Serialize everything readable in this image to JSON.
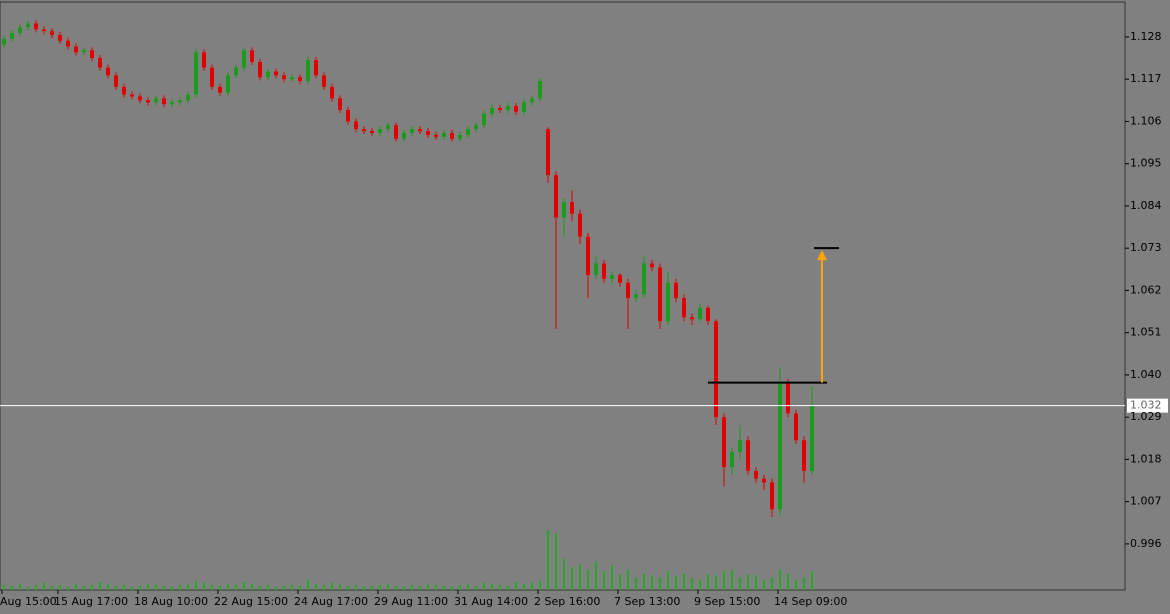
{
  "chart_data": {
    "type": "candlestick",
    "background": "#808080",
    "up_color": "#1a9c1a",
    "down_color": "#e00000",
    "volume_color": "#27a827",
    "categories": [
      "Aug 15:00",
      null,
      null,
      null,
      null,
      null,
      null,
      "15 Aug 17:00",
      null,
      null,
      null,
      null,
      null,
      null,
      null,
      null,
      null,
      "18 Aug 10:00",
      null,
      null,
      null,
      null,
      null,
      null,
      null,
      null,
      null,
      "22 Aug 15:00",
      null,
      null,
      null,
      null,
      null,
      null,
      null,
      null,
      null,
      "24 Aug 17:00",
      null,
      null,
      null,
      null,
      null,
      null,
      null,
      null,
      null,
      "29 Aug 11:00",
      null,
      null,
      null,
      null,
      null,
      null,
      null,
      null,
      null,
      "31 Aug 14:00",
      null,
      null,
      null,
      null,
      null,
      null,
      null,
      null,
      null,
      "2 Sep 16:00",
      null,
      null,
      null,
      null,
      null,
      null,
      null,
      null,
      null,
      "7 Sep 13:00",
      null,
      null,
      null,
      null,
      null,
      null,
      null,
      null,
      null,
      "9 Sep 15:00",
      null,
      null,
      null,
      null,
      null,
      null,
      null,
      null,
      null,
      "14 Sep 09:00",
      null,
      null,
      null,
      null
    ],
    "open": [
      1.126,
      1.1275,
      1.129,
      1.1305,
      1.1315,
      1.13,
      1.1295,
      1.1285,
      1.127,
      1.1255,
      1.124,
      1.1245,
      1.1225,
      1.12,
      1.118,
      1.115,
      1.113,
      1.1125,
      1.1115,
      1.111,
      1.112,
      1.1105,
      1.111,
      1.1115,
      1.113,
      1.124,
      1.12,
      1.115,
      1.1135,
      1.118,
      1.12,
      1.1245,
      1.1215,
      1.1175,
      1.119,
      1.118,
      1.117,
      1.1175,
      1.1165,
      1.122,
      1.118,
      1.115,
      1.112,
      1.109,
      1.106,
      1.104,
      1.1035,
      1.103,
      1.104,
      1.105,
      1.1015,
      1.103,
      1.104,
      1.1035,
      1.1025,
      1.102,
      1.103,
      1.1015,
      1.1025,
      1.104,
      1.105,
      1.108,
      1.1095,
      1.109,
      1.11,
      1.1085,
      1.111,
      1.112,
      1.104,
      1.092,
      1.081,
      1.085,
      1.082,
      1.076,
      1.066,
      1.069,
      1.065,
      1.066,
      1.064,
      1.06,
      1.061,
      1.069,
      1.068,
      1.054,
      1.064,
      1.06,
      1.055,
      1.0545,
      1.0575,
      1.054,
      1.029,
      1.016,
      1.02,
      1.023,
      1.015,
      1.013,
      1.012,
      1.005,
      1.038,
      1.03,
      1.023,
      1.015
    ],
    "high": [
      1.1283,
      1.1298,
      1.1313,
      1.1323,
      1.1323,
      1.1308,
      1.1303,
      1.1293,
      1.1278,
      1.1263,
      1.1253,
      1.1253,
      1.1233,
      1.1208,
      1.1188,
      1.1158,
      1.1138,
      1.1133,
      1.1123,
      1.1128,
      1.1128,
      1.1118,
      1.1123,
      1.1138,
      1.1248,
      1.1248,
      1.1208,
      1.1158,
      1.1188,
      1.1208,
      1.1253,
      1.1253,
      1.1223,
      1.1198,
      1.1198,
      1.1188,
      1.1183,
      1.1183,
      1.1228,
      1.1228,
      1.1188,
      1.1158,
      1.1128,
      1.1098,
      1.1068,
      1.1048,
      1.1043,
      1.1048,
      1.1058,
      1.1058,
      1.1038,
      1.1048,
      1.1048,
      1.1043,
      1.1033,
      1.1038,
      1.1038,
      1.1033,
      1.1048,
      1.1058,
      1.1088,
      1.1103,
      1.1103,
      1.1108,
      1.1108,
      1.1118,
      1.1128,
      1.1173,
      1.1045,
      1.093,
      1.086,
      1.088,
      1.083,
      1.077,
      1.071,
      1.07,
      1.067,
      1.0665,
      1.065,
      1.062,
      1.071,
      1.07,
      1.069,
      1.067,
      1.065,
      1.061,
      1.056,
      1.0585,
      1.058,
      1.0545,
      1.03,
      1.021,
      1.027,
      1.024,
      1.016,
      1.014,
      1.013,
      1.042,
      1.039,
      1.031,
      1.024,
      1.037
    ],
    "low": [
      1.1252,
      1.1267,
      1.1282,
      1.1297,
      1.1292,
      1.1287,
      1.1277,
      1.1262,
      1.1247,
      1.1232,
      1.1232,
      1.1217,
      1.1192,
      1.1172,
      1.1142,
      1.1122,
      1.1117,
      1.1107,
      1.1102,
      1.1102,
      1.1097,
      1.1097,
      1.1102,
      1.1107,
      1.1122,
      1.1192,
      1.1142,
      1.1127,
      1.1127,
      1.1172,
      1.1192,
      1.1207,
      1.1167,
      1.1167,
      1.1172,
      1.1162,
      1.1162,
      1.1157,
      1.1157,
      1.1172,
      1.1142,
      1.1112,
      1.1082,
      1.1052,
      1.1032,
      1.1027,
      1.1022,
      1.1022,
      1.1032,
      1.1007,
      1.1007,
      1.1022,
      1.1027,
      1.1017,
      1.1012,
      1.1012,
      1.1007,
      1.1007,
      1.1017,
      1.1032,
      1.1042,
      1.1072,
      1.1082,
      1.1082,
      1.1077,
      1.1077,
      1.1102,
      1.1112,
      1.09,
      1.052,
      1.076,
      1.08,
      1.074,
      1.06,
      1.065,
      1.064,
      1.064,
      1.063,
      1.052,
      1.059,
      1.06,
      1.067,
      1.052,
      1.053,
      1.059,
      1.054,
      1.053,
      1.054,
      1.053,
      1.027,
      1.011,
      1.014,
      1.018,
      1.014,
      1.012,
      1.01,
      1.003,
      1.0035,
      1.029,
      1.022,
      1.012,
      1.014
    ],
    "close": [
      1.1275,
      1.129,
      1.1305,
      1.1315,
      1.13,
      1.1295,
      1.1285,
      1.127,
      1.1255,
      1.124,
      1.1245,
      1.1225,
      1.12,
      1.118,
      1.115,
      1.113,
      1.1125,
      1.1115,
      1.111,
      1.112,
      1.1105,
      1.111,
      1.1115,
      1.113,
      1.124,
      1.12,
      1.115,
      1.1135,
      1.118,
      1.12,
      1.1245,
      1.1215,
      1.1175,
      1.119,
      1.118,
      1.117,
      1.1175,
      1.1165,
      1.122,
      1.118,
      1.115,
      1.112,
      1.109,
      1.106,
      1.104,
      1.1035,
      1.103,
      1.104,
      1.105,
      1.1015,
      1.103,
      1.104,
      1.1035,
      1.1025,
      1.102,
      1.103,
      1.1015,
      1.1025,
      1.104,
      1.105,
      1.108,
      1.1095,
      1.109,
      1.11,
      1.1085,
      1.111,
      1.112,
      1.1165,
      1.092,
      1.081,
      1.085,
      1.082,
      1.076,
      1.066,
      1.069,
      1.065,
      1.066,
      1.064,
      1.06,
      1.061,
      1.069,
      1.068,
      1.054,
      1.064,
      1.06,
      1.055,
      1.0545,
      1.0575,
      1.054,
      1.029,
      1.016,
      1.02,
      1.023,
      1.015,
      1.013,
      1.012,
      1.005,
      1.038,
      1.03,
      1.023,
      1.015,
      1.032
    ],
    "volume": [
      5,
      4,
      6,
      3,
      5,
      7,
      4,
      5,
      3,
      6,
      4,
      5,
      8,
      6,
      4,
      5,
      3,
      4,
      6,
      5,
      4,
      3,
      5,
      6,
      9,
      7,
      5,
      4,
      6,
      5,
      8,
      6,
      4,
      5,
      3,
      4,
      5,
      4,
      10,
      6,
      5,
      7,
      6,
      4,
      5,
      3,
      4,
      5,
      6,
      4,
      3,
      5,
      4,
      6,
      5,
      4,
      3,
      5,
      6,
      4,
      7,
      6,
      5,
      4,
      8,
      6,
      7,
      9,
      58,
      55,
      30,
      22,
      25,
      20,
      28,
      18,
      24,
      15,
      20,
      12,
      16,
      14,
      12,
      18,
      14,
      16,
      12,
      10,
      15,
      14,
      18,
      20,
      12,
      15,
      14,
      10,
      12,
      20,
      16,
      10,
      12,
      18
    ],
    "ylim": [
      0.984,
      1.1371
    ],
    "yticks": [
      1.128,
      1.117,
      1.106,
      1.095,
      1.084,
      1.073,
      1.062,
      1.051,
      {
        "value": 1.04,
        "label": "1.040"
      },
      1.029,
      1.018,
      1.007,
      0.996
    ],
    "levels": [
      {
        "value": 1.038,
        "color": "#000000"
      },
      {
        "value": 1.073,
        "color": "#000000"
      }
    ],
    "arrow": {
      "from": 1.038,
      "to": 1.073,
      "color": "#ffa500"
    },
    "last_price": {
      "value": 1.032,
      "color": "#ffffff"
    }
  }
}
